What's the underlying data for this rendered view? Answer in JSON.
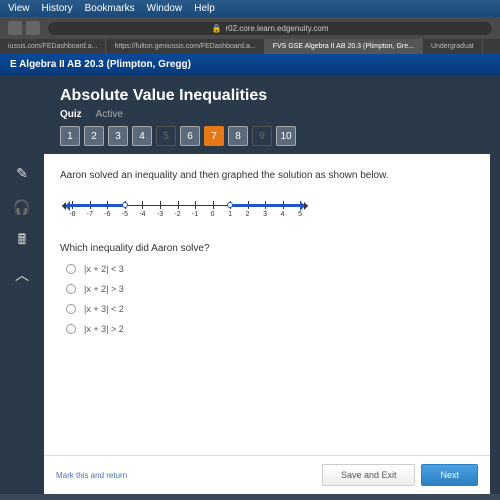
{
  "menubar": {
    "items": [
      "View",
      "History",
      "Bookmarks",
      "Window",
      "Help"
    ]
  },
  "browser": {
    "url": "r02.core.learn.edgenuity.com",
    "tabs": [
      {
        "label": "iussis.com/FEDashboard.a..."
      },
      {
        "label": "https://fulton.geniussis.com/FEDashboard.a..."
      },
      {
        "label": "FVS GSE Algebra II AB 20.3 (Plimpton, Gre..."
      },
      {
        "label": "Undergraduat"
      }
    ]
  },
  "header": {
    "course": "E Algebra II AB 20.3 (Plimpton, Gregg)"
  },
  "lesson": {
    "title": "Absolute Value Inequalities",
    "mode": "Quiz",
    "status": "Active",
    "questions": [
      {
        "n": "1",
        "s": "answered"
      },
      {
        "n": "2",
        "s": "answered"
      },
      {
        "n": "3",
        "s": "answered"
      },
      {
        "n": "4",
        "s": "answered"
      },
      {
        "n": "5",
        "s": "disabled"
      },
      {
        "n": "6",
        "s": "answered"
      },
      {
        "n": "7",
        "s": "current"
      },
      {
        "n": "8",
        "s": "answered"
      },
      {
        "n": "9",
        "s": "disabled"
      },
      {
        "n": "10",
        "s": "answered"
      }
    ]
  },
  "question": {
    "prompt": "Aaron solved an inequality and then graphed the solution as shown below.",
    "sub_prompt": "Which inequality did Aaron solve?",
    "options": [
      "|x + 2| < 3",
      "|x + 2| > 3",
      "|x + 3| < 2",
      "|x + 3| > 2"
    ],
    "numberline": {
      "min": -8,
      "max": 5,
      "ticks": [
        -8,
        -7,
        -6,
        -5,
        -4,
        -3,
        -2,
        -1,
        0,
        1,
        2,
        3,
        4,
        5
      ],
      "open_circles": [
        -5,
        1
      ],
      "ray_left_from": -5,
      "ray_right_from": 1,
      "color": "#2255cc"
    }
  },
  "footer": {
    "mark": "Mark this and return",
    "save": "Save and Exit",
    "next": "Next"
  }
}
